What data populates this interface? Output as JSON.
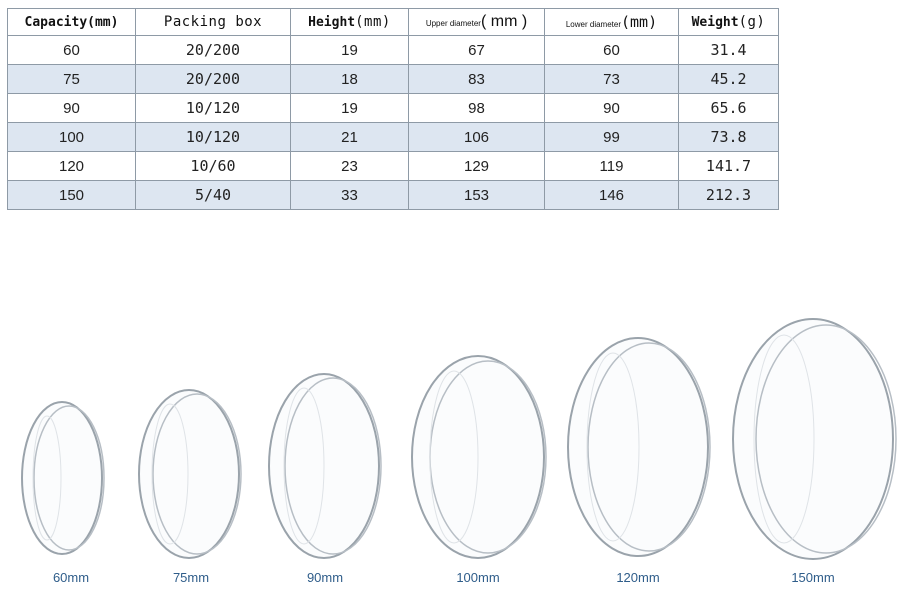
{
  "table": {
    "headers": {
      "capacity": "Capacity",
      "capacity_unit": "(mm)",
      "packing": "Packing box",
      "height": "Height",
      "height_unit": "(mm)",
      "upper": "Upper diameter",
      "upper_unit": "( mm )",
      "lower": "Lower diameter",
      "lower_unit": "(mm)",
      "weight": "Weight",
      "weight_unit": "(g)"
    },
    "rows": [
      {
        "capacity": "60",
        "packing": "20/200",
        "height": "19",
        "upper": "67",
        "lower": "60",
        "weight": "31.4"
      },
      {
        "capacity": "75",
        "packing": "20/200",
        "height": "18",
        "upper": "83",
        "lower": "73",
        "weight": "45.2"
      },
      {
        "capacity": "90",
        "packing": "10/120",
        "height": "19",
        "upper": "98",
        "lower": "90",
        "weight": "65.6"
      },
      {
        "capacity": "100",
        "packing": "10/120",
        "height": "21",
        "upper": "106",
        "lower": "99",
        "weight": "73.8"
      },
      {
        "capacity": "120",
        "packing": "10/60",
        "height": "23",
        "upper": "129",
        "lower": "119",
        "weight": "141.7"
      },
      {
        "capacity": "150",
        "packing": "5/40",
        "height": "33",
        "upper": "153",
        "lower": "146",
        "weight": "212.3"
      }
    ]
  },
  "dishes": [
    {
      "label": "60mm"
    },
    {
      "label": "75mm"
    },
    {
      "label": "90mm"
    },
    {
      "label": "100mm"
    },
    {
      "label": "120mm"
    },
    {
      "label": "150mm"
    }
  ],
  "colors": {
    "row_alt": "#dde6f1",
    "grid": "#8e9aa6",
    "label": "#2f5d8a",
    "glass": "#9aa3ab"
  }
}
